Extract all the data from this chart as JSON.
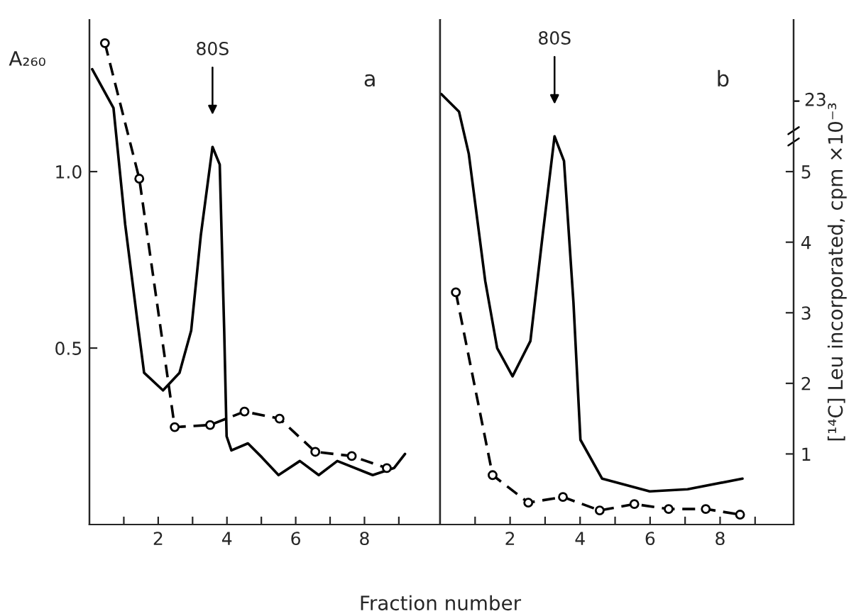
{
  "chart_data": [
    {
      "type": "line",
      "ylabel": "A₂₆₀",
      "xlabel": "Fraction number",
      "xlim": [
        0,
        10.2
      ],
      "ylim": [
        0,
        1.43
      ],
      "y2lim": [
        0,
        7.15
      ],
      "xticks": [
        {
          "value": 1,
          "label": null
        },
        2,
        {
          "value": 3,
          "label": null
        },
        4,
        {
          "value": 5,
          "label": null
        },
        6,
        {
          "value": 7,
          "label": null
        },
        8,
        {
          "value": 9,
          "label": null
        }
      ],
      "yticks": [
        0.5,
        {
          "value": 1.0,
          "label": "1.0"
        }
      ],
      "grid": false,
      "legend": false,
      "annotations": [
        "80S",
        "a"
      ],
      "series": [
        {
          "color": "#000000",
          "line_style": "solid",
          "marker": "none",
          "x": [
            0.08,
            0.7,
            1.04,
            1.39,
            1.59,
            2.14,
            2.62,
            2.96,
            3.24,
            3.58,
            3.79,
            3.92,
            3.99,
            4.13,
            4.61,
            5.02,
            5.5,
            6.12,
            6.67,
            7.21,
            8.24,
            8.86,
            9.18
          ],
          "values": [
            1.29,
            1.18,
            0.85,
            0.58,
            0.43,
            0.38,
            0.43,
            0.55,
            0.82,
            1.07,
            1.02,
            0.55,
            0.25,
            0.21,
            0.23,
            0.19,
            0.14,
            0.18,
            0.14,
            0.18,
            0.14,
            0.16,
            0.2
          ]
        },
        {
          "color": "#000000",
          "line_style": "dashed",
          "marker": "circle",
          "axis": "y2",
          "x": [
            0.45,
            1.45,
            2.48,
            3.51,
            4.51,
            5.53,
            6.57,
            7.63,
            8.65
          ],
          "values": [
            6.82,
            4.9,
            1.38,
            1.41,
            1.6,
            1.5,
            1.03,
            0.97,
            0.8
          ]
        }
      ]
    },
    {
      "type": "line",
      "y2label": "[¹⁴C] Leu incorporated, cpm ×10⁻³",
      "xlim": [
        0,
        10.1
      ],
      "ylim": [
        0,
        1.43
      ],
      "y2lim": [
        0,
        7.15
      ],
      "xticks": [
        {
          "value": 1,
          "label": null
        },
        2,
        {
          "value": 3,
          "label": null
        },
        4,
        {
          "value": 5,
          "label": null
        },
        6,
        {
          "value": 7,
          "label": null
        },
        8,
        {
          "value": 9,
          "label": null
        }
      ],
      "y2ticks": [
        1,
        2,
        3,
        4,
        5
      ],
      "grid": false,
      "legend": false,
      "annotations": [
        "80S",
        "b",
        "23"
      ],
      "series": [
        {
          "color": "#000000",
          "line_style": "solid",
          "marker": "none",
          "x": [
            0.03,
            0.54,
            0.82,
            1.29,
            1.63,
            2.07,
            2.58,
            2.93,
            3.27,
            3.54,
            3.81,
            4.01,
            4.63,
            5.99,
            7.07,
            8.64
          ],
          "values": [
            1.22,
            1.17,
            1.05,
            0.69,
            0.5,
            0.42,
            0.52,
            0.82,
            1.1,
            1.03,
            0.63,
            0.24,
            0.13,
            0.094,
            0.1,
            0.13
          ]
        },
        {
          "color": "#000000",
          "line_style": "dashed",
          "marker": "circle",
          "axis": "y2",
          "x": [
            0.45,
            1.5,
            2.52,
            3.51,
            4.56,
            5.55,
            6.53,
            7.59,
            8.57
          ],
          "values": [
            3.29,
            0.7,
            0.31,
            0.39,
            0.2,
            0.29,
            0.22,
            0.22,
            0.14
          ]
        }
      ]
    }
  ]
}
